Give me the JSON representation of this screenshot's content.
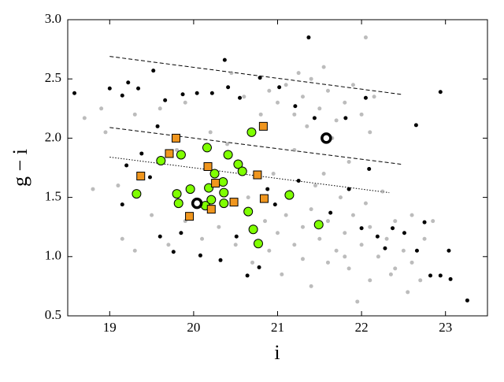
{
  "chart_data": {
    "type": "scatter",
    "xlabel": "i",
    "ylabel": "g − i",
    "xlim": [
      18.5,
      23.5
    ],
    "ylim": [
      0.5,
      3.0
    ],
    "xticks": [
      19,
      20,
      21,
      22,
      23
    ],
    "yticks": [
      0.5,
      {
        "value": 1.0,
        "label": "1.0"
      },
      1.5,
      {
        "value": 2.0,
        "label": "2.0"
      },
      2.5,
      {
        "value": 3.0,
        "label": "3.0"
      }
    ],
    "series": [
      {
        "color": "#a0a0a0",
        "marker": "circle",
        "x": [
          21.0,
          21.1,
          21.2,
          21.3,
          21.4,
          21.5,
          21.6,
          21.7,
          21.8,
          21.9,
          22.0,
          21.55,
          21.25,
          20.9,
          20.8,
          22.1,
          21.65,
          21.35,
          20.6,
          20.45,
          19.9,
          19.6,
          19.3,
          18.9,
          22.15,
          22.05,
          21.0,
          21.1,
          21.2,
          21.3,
          21.4,
          21.5,
          21.6,
          21.7,
          21.8,
          21.9,
          22.0,
          22.1,
          22.2,
          22.3,
          22.4,
          22.5,
          22.6,
          22.35,
          22.1,
          21.85,
          21.6,
          21.45,
          21.75,
          22.05,
          22.25,
          21.55,
          21.85,
          21.2,
          20.9,
          20.7,
          20.5,
          20.3,
          20.1,
          19.9,
          19.7,
          19.5,
          19.1,
          18.8,
          19.3,
          19.15,
          22.7,
          22.55,
          21.95,
          21.4,
          21.05,
          20.65,
          20.95,
          21.15,
          22.75,
          22.85,
          18.7,
          18.95,
          19.8,
          20.2,
          20.4,
          21.8,
          22.4,
          21.3,
          20.85,
          22.6
        ],
        "values": [
          2.3,
          2.45,
          2.2,
          2.35,
          2.5,
          2.25,
          2.4,
          2.15,
          2.3,
          2.45,
          2.2,
          2.6,
          2.55,
          2.4,
          2.2,
          2.05,
          2.0,
          2.1,
          2.35,
          2.55,
          2.3,
          2.25,
          2.2,
          2.25,
          2.35,
          2.85,
          1.2,
          1.35,
          1.1,
          1.25,
          1.4,
          1.15,
          1.3,
          1.05,
          1.2,
          1.35,
          1.1,
          1.25,
          1.0,
          1.15,
          1.3,
          1.05,
          0.95,
          0.85,
          0.8,
          0.9,
          0.95,
          1.6,
          1.5,
          1.45,
          1.55,
          1.7,
          1.8,
          1.9,
          1.05,
          0.95,
          1.1,
          1.25,
          1.15,
          1.3,
          1.1,
          1.35,
          1.6,
          1.57,
          1.05,
          1.15,
          0.8,
          0.7,
          0.62,
          0.75,
          0.85,
          1.5,
          1.7,
          1.55,
          1.15,
          1.3,
          2.17,
          2.05,
          1.9,
          2.05,
          1.95,
          1.0,
          0.9,
          0.98,
          1.3,
          1.35
        ]
      },
      {
        "color": "#000000",
        "marker": "circle",
        "x": [
          18.58,
          19.0,
          19.22,
          19.34,
          19.52,
          20.37,
          21.37,
          22.94,
          22.65,
          19.15,
          19.66,
          19.87,
          20.04,
          20.22,
          20.41,
          20.55,
          20.79,
          21.02,
          21.21,
          21.44,
          21.81,
          22.05,
          19.57,
          19.38,
          19.2,
          19.48,
          19.6,
          19.15,
          19.76,
          20.08,
          20.32,
          20.64,
          20.78,
          20.97,
          21.25,
          21.63,
          22.0,
          22.19,
          22.37,
          22.51,
          22.75,
          22.82,
          22.94,
          23.06,
          23.04,
          23.26,
          22.66,
          22.28,
          21.85,
          22.09,
          20.51,
          20.88,
          19.85
        ],
        "values": [
          2.38,
          2.42,
          2.47,
          2.42,
          2.57,
          2.66,
          2.85,
          2.39,
          2.11,
          2.36,
          2.32,
          2.37,
          2.38,
          2.38,
          2.43,
          2.34,
          2.51,
          2.43,
          2.27,
          2.17,
          2.17,
          2.34,
          2.1,
          1.87,
          1.77,
          1.67,
          1.17,
          1.44,
          1.04,
          1.01,
          0.97,
          0.84,
          0.91,
          1.44,
          1.64,
          1.37,
          1.24,
          1.17,
          1.24,
          1.2,
          1.29,
          0.84,
          0.84,
          0.81,
          1.05,
          0.63,
          1.05,
          1.07,
          1.57,
          1.74,
          1.17,
          1.57,
          1.2
        ]
      },
      {
        "color": "#7fff00",
        "marker": "circle-big",
        "x": [
          19.32,
          19.61,
          19.85,
          19.8,
          19.82,
          19.96,
          20.16,
          20.04,
          20.14,
          20.18,
          20.21,
          20.25,
          20.35,
          20.36,
          20.36,
          20.41,
          20.53,
          20.58,
          20.69,
          20.65,
          20.71,
          20.77,
          21.14,
          21.49
        ],
        "values": [
          1.53,
          1.81,
          1.86,
          1.53,
          1.45,
          1.57,
          1.92,
          1.45,
          1.43,
          1.58,
          1.48,
          1.7,
          1.63,
          1.54,
          1.45,
          1.86,
          1.78,
          1.72,
          2.05,
          1.38,
          1.23,
          1.11,
          1.52,
          1.27
        ]
      },
      {
        "color": "#f0961e",
        "marker": "square",
        "x": [
          19.71,
          19.79,
          19.37,
          20.17,
          20.26,
          20.48,
          20.76,
          20.83,
          20.84,
          19.95,
          20.21
        ],
        "values": [
          1.87,
          2.0,
          1.68,
          1.76,
          1.62,
          1.46,
          1.69,
          2.1,
          1.49,
          1.34,
          1.4
        ]
      },
      {
        "color": "#000000",
        "marker": "ring",
        "x": [
          20.04,
          21.58
        ],
        "values": [
          1.45,
          2.0
        ]
      }
    ],
    "lines": [
      {
        "style": "dashed",
        "x": [
          19,
          22.47
        ],
        "values": [
          2.69,
          2.37
        ]
      },
      {
        "style": "dashed",
        "x": [
          19,
          22.47
        ],
        "values": [
          2.09,
          1.78
        ]
      },
      {
        "style": "dotted",
        "x": [
          19,
          22.33
        ],
        "values": [
          1.84,
          1.54
        ]
      }
    ]
  }
}
